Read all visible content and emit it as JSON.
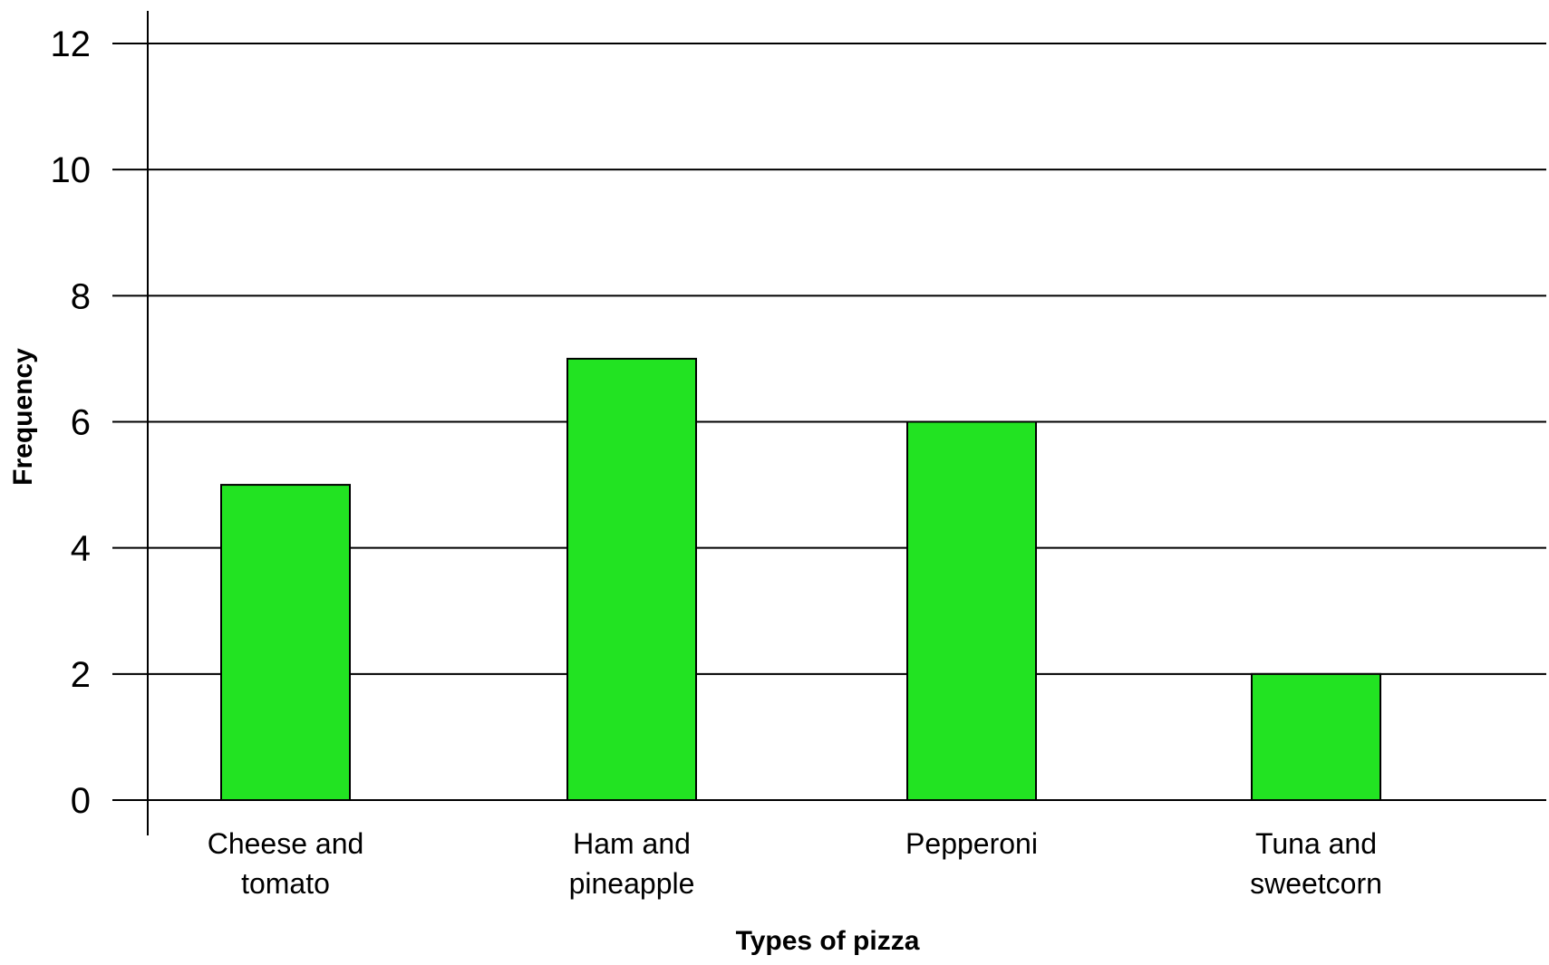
{
  "chart_data": {
    "type": "bar",
    "title": "",
    "xlabel": "Types of pizza",
    "ylabel": "Frequency",
    "categories": [
      [
        "Cheese and",
        "tomato"
      ],
      [
        "Ham and",
        "pineapple"
      ],
      [
        "Pepperoni"
      ],
      [
        "Tuna and",
        "sweetcorn"
      ]
    ],
    "values": [
      5,
      7,
      6,
      2
    ],
    "ylim": [
      0,
      12
    ],
    "yticks": [
      "0",
      "2",
      "4",
      "6",
      "8",
      "10",
      "12"
    ],
    "grid": "horizontal",
    "legend": "none",
    "bar_color": "#22e322",
    "bar_border_color": "#000000",
    "grid_color": "#000000"
  }
}
